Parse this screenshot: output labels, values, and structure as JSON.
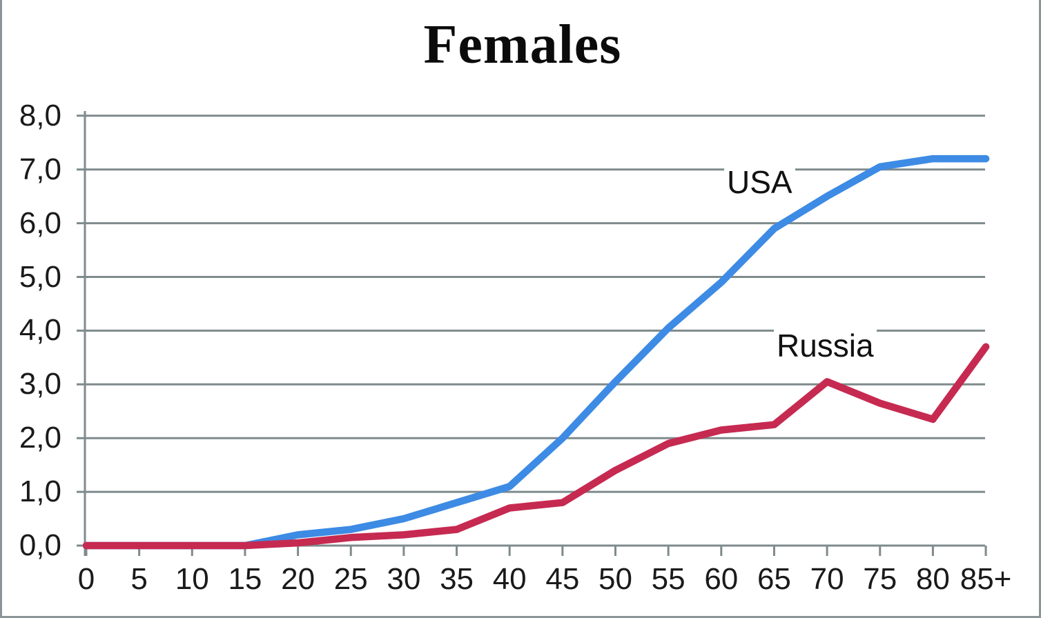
{
  "title": "Females",
  "series_labels": {
    "usa": "USA",
    "russia": "Russia"
  },
  "colors": {
    "usa_line": "#3d8be4",
    "russia_line": "#c62a51",
    "grid": "#7e8a8c",
    "border": "#8a9598",
    "text": "#1a1a1a"
  },
  "chart_data": {
    "type": "line",
    "title": "Females",
    "xlabel": "",
    "ylabel": "",
    "categories": [
      "0",
      "5",
      "10",
      "15",
      "20",
      "25",
      "30",
      "35",
      "40",
      "45",
      "50",
      "55",
      "60",
      "65",
      "70",
      "75",
      "80",
      "85+"
    ],
    "series": [
      {
        "name": "USA",
        "color": "#3d8be4",
        "values": [
          0,
          0,
          0,
          0,
          0.2,
          0.3,
          0.5,
          0.8,
          1.1,
          2.0,
          3.05,
          4.05,
          4.9,
          5.9,
          6.5,
          7.05,
          7.2,
          7.2
        ]
      },
      {
        "name": "Russia",
        "color": "#c62a51",
        "values": [
          0,
          0,
          0,
          0,
          0.05,
          0.15,
          0.2,
          0.3,
          0.7,
          0.8,
          1.4,
          1.9,
          2.15,
          2.25,
          3.05,
          2.65,
          2.35,
          3.7
        ]
      }
    ],
    "ylim": [
      0,
      8
    ],
    "y_tick_step": 1,
    "y_tick_labels": [
      "0,0",
      "1,0",
      "2,0",
      "3,0",
      "4,0",
      "5,0",
      "6,0",
      "7,0",
      "8,0"
    ],
    "decimal_separator": ",",
    "grid": true,
    "legend_position": "inline-labels-near-lines"
  }
}
